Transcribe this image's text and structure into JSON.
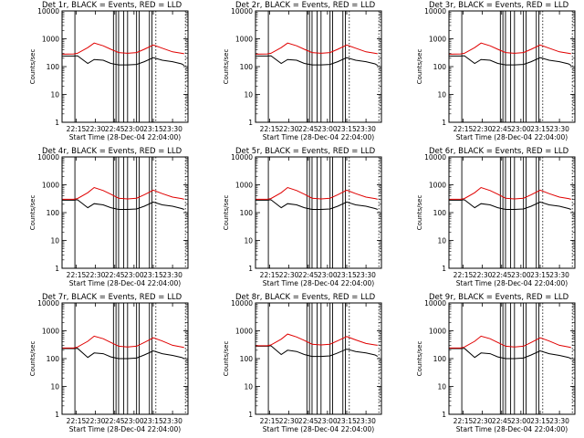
{
  "figure": {
    "background": "#ffffff",
    "x_axis_label": "Start Time (28-Dec-04 22:04:00)",
    "y_axis_label": "Counts/sec",
    "series_colors": {
      "events": "#000000",
      "lld": "#e00000"
    }
  },
  "chart_data": [
    {
      "type": "line",
      "title": "Det 1r, BLACK = Events, RED = LLD",
      "xlabel": "Start Time (28-Dec-04 22:04:00)",
      "ylabel": "Counts/sec",
      "yscale": "log",
      "xlim": [
        "22:04",
        "23:42"
      ],
      "ylim": [
        1,
        10000
      ],
      "x_ticks": [
        "22:15",
        "22:30",
        "22:45",
        "23:00",
        "23:15",
        "23:30"
      ],
      "y_ticks": [
        "1",
        "10",
        "100",
        "1000",
        "10000"
      ],
      "series": [
        {
          "name": "Events",
          "color": "#000000",
          "x": [
            "22:04",
            "22:13",
            "22:16",
            "22:24",
            "22:29",
            "22:36",
            "22:42",
            "22:48",
            "22:55",
            "23:02",
            "23:08",
            "23:15",
            "23:22",
            "23:30",
            "23:37",
            "23:39"
          ],
          "values": [
            240,
            240,
            245,
            130,
            180,
            170,
            130,
            115,
            115,
            120,
            150,
            210,
            170,
            150,
            125,
            110
          ]
        },
        {
          "name": "LLD",
          "color": "#e00000",
          "x": [
            "22:04",
            "22:13",
            "22:16",
            "22:24",
            "22:29",
            "22:36",
            "22:42",
            "22:48",
            "22:55",
            "23:02",
            "23:08",
            "23:15",
            "23:22",
            "23:30",
            "23:37",
            "23:39"
          ],
          "values": [
            280,
            285,
            300,
            480,
            700,
            560,
            420,
            320,
            300,
            320,
            420,
            600,
            460,
            340,
            300,
            290
          ]
        }
      ]
    },
    {
      "type": "line",
      "title": "Det 2r, BLACK = Events, RED = LLD",
      "xlabel": "Start Time (28-Dec-04 22:04:00)",
      "ylabel": "Counts/sec",
      "yscale": "log",
      "xlim": [
        "22:04",
        "23:42"
      ],
      "ylim": [
        1,
        10000
      ],
      "x_ticks": [
        "22:15",
        "22:30",
        "22:45",
        "23:00",
        "23:15",
        "23:30"
      ],
      "y_ticks": [
        "1",
        "10",
        "100",
        "1000",
        "10000"
      ],
      "series": [
        {
          "name": "Events",
          "color": "#000000",
          "x": [
            "22:04",
            "22:13",
            "22:16",
            "22:24",
            "22:29",
            "22:36",
            "22:42",
            "22:48",
            "22:55",
            "23:02",
            "23:08",
            "23:15",
            "23:22",
            "23:30",
            "23:37",
            "23:39"
          ],
          "values": [
            240,
            240,
            245,
            130,
            180,
            170,
            130,
            115,
            115,
            120,
            150,
            210,
            170,
            150,
            125,
            110
          ]
        },
        {
          "name": "LLD",
          "color": "#e00000",
          "x": [
            "22:04",
            "22:13",
            "22:16",
            "22:24",
            "22:29",
            "22:36",
            "22:42",
            "22:48",
            "22:55",
            "23:02",
            "23:08",
            "23:15",
            "23:22",
            "23:30",
            "23:37",
            "23:39"
          ],
          "values": [
            280,
            285,
            300,
            480,
            700,
            560,
            420,
            320,
            300,
            320,
            420,
            600,
            460,
            340,
            300,
            290
          ]
        }
      ]
    },
    {
      "type": "line",
      "title": "Det 3r, BLACK = Events, RED = LLD",
      "xlabel": "Start Time (28-Dec-04 22:04:00)",
      "ylabel": "Counts/sec",
      "yscale": "log",
      "xlim": [
        "22:04",
        "23:42"
      ],
      "ylim": [
        1,
        10000
      ],
      "x_ticks": [
        "22:15",
        "22:30",
        "22:45",
        "23:00",
        "23:15",
        "23:30"
      ],
      "y_ticks": [
        "1",
        "10",
        "100",
        "1000",
        "10000"
      ],
      "series": [
        {
          "name": "Events",
          "color": "#000000",
          "x": [
            "22:04",
            "22:13",
            "22:16",
            "22:24",
            "22:29",
            "22:36",
            "22:42",
            "22:48",
            "22:55",
            "23:02",
            "23:08",
            "23:15",
            "23:22",
            "23:30",
            "23:37",
            "23:39"
          ],
          "values": [
            240,
            240,
            245,
            130,
            180,
            170,
            130,
            115,
            115,
            120,
            150,
            210,
            170,
            150,
            125,
            110
          ]
        },
        {
          "name": "LLD",
          "color": "#e00000",
          "x": [
            "22:04",
            "22:13",
            "22:16",
            "22:24",
            "22:29",
            "22:36",
            "22:42",
            "22:48",
            "22:55",
            "23:02",
            "23:08",
            "23:15",
            "23:22",
            "23:30",
            "23:37",
            "23:39"
          ],
          "values": [
            280,
            285,
            300,
            480,
            700,
            560,
            420,
            320,
            300,
            320,
            420,
            600,
            460,
            340,
            300,
            290
          ]
        }
      ]
    },
    {
      "type": "line",
      "title": "Det 4r, BLACK = Events, RED = LLD",
      "xlabel": "Start Time (28-Dec-04 22:04:00)",
      "ylabel": "Counts/sec",
      "yscale": "log",
      "xlim": [
        "22:04",
        "23:42"
      ],
      "ylim": [
        1,
        10000
      ],
      "x_ticks": [
        "22:15",
        "22:30",
        "22:45",
        "23:00",
        "23:15",
        "23:30"
      ],
      "y_ticks": [
        "1",
        "10",
        "100",
        "1000",
        "10000"
      ],
      "series": [
        {
          "name": "Events",
          "color": "#000000",
          "x": [
            "22:04",
            "22:13",
            "22:16",
            "22:24",
            "22:29",
            "22:36",
            "22:42",
            "22:48",
            "22:55",
            "23:02",
            "23:08",
            "23:15",
            "23:22",
            "23:30",
            "23:37",
            "23:39"
          ],
          "values": [
            280,
            280,
            290,
            150,
            210,
            190,
            150,
            130,
            130,
            135,
            170,
            240,
            190,
            170,
            140,
            130
          ]
        },
        {
          "name": "LLD",
          "color": "#e00000",
          "x": [
            "22:04",
            "22:13",
            "22:16",
            "22:24",
            "22:29",
            "22:36",
            "22:42",
            "22:48",
            "22:55",
            "23:02",
            "23:08",
            "23:15",
            "23:22",
            "23:30",
            "23:37",
            "23:39"
          ],
          "values": [
            300,
            300,
            320,
            520,
            800,
            620,
            460,
            330,
            310,
            330,
            440,
            640,
            480,
            360,
            320,
            300
          ]
        }
      ]
    },
    {
      "type": "line",
      "title": "Det 5r, BLACK = Events, RED = LLD",
      "xlabel": "Start Time (28-Dec-04 22:04:00)",
      "ylabel": "Counts/sec",
      "yscale": "log",
      "xlim": [
        "22:04",
        "23:42"
      ],
      "ylim": [
        1,
        10000
      ],
      "x_ticks": [
        "22:15",
        "22:30",
        "22:45",
        "23:00",
        "23:15",
        "23:30"
      ],
      "y_ticks": [
        "1",
        "10",
        "100",
        "1000",
        "10000"
      ],
      "series": [
        {
          "name": "Events",
          "color": "#000000",
          "x": [
            "22:04",
            "22:13",
            "22:16",
            "22:24",
            "22:29",
            "22:36",
            "22:42",
            "22:48",
            "22:55",
            "23:02",
            "23:08",
            "23:15",
            "23:22",
            "23:30",
            "23:37",
            "23:39"
          ],
          "values": [
            280,
            280,
            290,
            150,
            210,
            190,
            150,
            130,
            130,
            135,
            170,
            240,
            190,
            170,
            140,
            130
          ]
        },
        {
          "name": "LLD",
          "color": "#e00000",
          "x": [
            "22:04",
            "22:13",
            "22:16",
            "22:24",
            "22:29",
            "22:36",
            "22:42",
            "22:48",
            "22:55",
            "23:02",
            "23:08",
            "23:15",
            "23:22",
            "23:30",
            "23:37",
            "23:39"
          ],
          "values": [
            300,
            300,
            320,
            520,
            800,
            620,
            460,
            330,
            310,
            330,
            440,
            640,
            480,
            360,
            320,
            300
          ]
        }
      ]
    },
    {
      "type": "line",
      "title": "Det 6r, BLACK = Events, RED = LLD",
      "xlabel": "Start Time (28-Dec-04 22:04:00)",
      "ylabel": "Counts/sec",
      "yscale": "log",
      "xlim": [
        "22:04",
        "23:42"
      ],
      "ylim": [
        1,
        10000
      ],
      "x_ticks": [
        "22:15",
        "22:30",
        "22:45",
        "23:00",
        "23:15",
        "23:30"
      ],
      "y_ticks": [
        "1",
        "10",
        "100",
        "1000",
        "10000"
      ],
      "series": [
        {
          "name": "Events",
          "color": "#000000",
          "x": [
            "22:04",
            "22:13",
            "22:16",
            "22:24",
            "22:29",
            "22:36",
            "22:42",
            "22:48",
            "22:55",
            "23:02",
            "23:08",
            "23:15",
            "23:22",
            "23:30",
            "23:37",
            "23:39"
          ],
          "values": [
            280,
            280,
            290,
            150,
            210,
            190,
            150,
            130,
            130,
            135,
            170,
            240,
            190,
            170,
            140,
            130
          ]
        },
        {
          "name": "LLD",
          "color": "#e00000",
          "x": [
            "22:04",
            "22:13",
            "22:16",
            "22:24",
            "22:29",
            "22:36",
            "22:42",
            "22:48",
            "22:55",
            "23:02",
            "23:08",
            "23:15",
            "23:22",
            "23:30",
            "23:37",
            "23:39"
          ],
          "values": [
            300,
            300,
            320,
            520,
            800,
            620,
            460,
            330,
            310,
            330,
            440,
            640,
            480,
            360,
            320,
            300
          ]
        }
      ]
    },
    {
      "type": "line",
      "title": "Det 7r, BLACK = Events, RED = LLD",
      "xlabel": "Start Time (28-Dec-04 22:04:00)",
      "ylabel": "Counts/sec",
      "yscale": "log",
      "xlim": [
        "22:04",
        "23:42"
      ],
      "ylim": [
        1,
        10000
      ],
      "x_ticks": [
        "22:15",
        "22:30",
        "22:45",
        "23:00",
        "23:15",
        "23:30"
      ],
      "y_ticks": [
        "1",
        "10",
        "100",
        "1000",
        "10000"
      ],
      "series": [
        {
          "name": "Events",
          "color": "#000000",
          "x": [
            "22:04",
            "22:13",
            "22:16",
            "22:24",
            "22:29",
            "22:36",
            "22:42",
            "22:48",
            "22:55",
            "23:02",
            "23:08",
            "23:15",
            "23:22",
            "23:30",
            "23:37",
            "23:39"
          ],
          "values": [
            230,
            230,
            235,
            110,
            160,
            150,
            115,
            100,
            100,
            105,
            135,
            190,
            150,
            130,
            110,
            100
          ]
        },
        {
          "name": "LLD",
          "color": "#e00000",
          "x": [
            "22:04",
            "22:13",
            "22:16",
            "22:24",
            "22:29",
            "22:36",
            "22:42",
            "22:48",
            "22:55",
            "23:02",
            "23:08",
            "23:15",
            "23:22",
            "23:30",
            "23:37",
            "23:39"
          ],
          "values": [
            240,
            240,
            260,
            420,
            640,
            520,
            380,
            280,
            260,
            280,
            380,
            560,
            430,
            300,
            260,
            250
          ]
        }
      ]
    },
    {
      "type": "line",
      "title": "Det 8r, BLACK = Events, RED = LLD",
      "xlabel": "Start Time (28-Dec-04 22:04:00)",
      "ylabel": "Counts/sec",
      "yscale": "log",
      "xlim": [
        "22:04",
        "23:42"
      ],
      "ylim": [
        1,
        10000
      ],
      "x_ticks": [
        "22:15",
        "22:30",
        "22:45",
        "23:00",
        "23:15",
        "23:30"
      ],
      "y_ticks": [
        "1",
        "10",
        "100",
        "1000",
        "10000"
      ],
      "series": [
        {
          "name": "Events",
          "color": "#000000",
          "x": [
            "22:04",
            "22:13",
            "22:16",
            "22:24",
            "22:29",
            "22:36",
            "22:42",
            "22:48",
            "22:55",
            "23:02",
            "23:08",
            "23:15",
            "23:22",
            "23:30",
            "23:37",
            "23:39"
          ],
          "values": [
            280,
            280,
            290,
            140,
            200,
            180,
            140,
            120,
            120,
            125,
            160,
            220,
            180,
            160,
            135,
            120
          ]
        },
        {
          "name": "LLD",
          "color": "#e00000",
          "x": [
            "22:04",
            "22:13",
            "22:16",
            "22:24",
            "22:29",
            "22:36",
            "22:42",
            "22:48",
            "22:55",
            "23:02",
            "23:08",
            "23:15",
            "23:22",
            "23:30",
            "23:37",
            "23:39"
          ],
          "values": [
            290,
            290,
            310,
            500,
            760,
            600,
            450,
            330,
            310,
            330,
            440,
            620,
            470,
            350,
            310,
            300
          ]
        }
      ]
    },
    {
      "type": "line",
      "title": "Det 9r, BLACK = Events, RED = LLD",
      "xlabel": "Start Time (28-Dec-04 22:04:00)",
      "ylabel": "Counts/sec",
      "yscale": "log",
      "xlim": [
        "22:04",
        "23:42"
      ],
      "ylim": [
        1,
        10000
      ],
      "x_ticks": [
        "22:15",
        "22:30",
        "22:45",
        "23:00",
        "23:15",
        "23:30"
      ],
      "y_ticks": [
        "1",
        "10",
        "100",
        "1000",
        "10000"
      ],
      "series": [
        {
          "name": "Events",
          "color": "#000000",
          "x": [
            "22:04",
            "22:13",
            "22:16",
            "22:24",
            "22:29",
            "22:36",
            "22:42",
            "22:48",
            "22:55",
            "23:02",
            "23:08",
            "23:15",
            "23:22",
            "23:30",
            "23:37",
            "23:39"
          ],
          "values": [
            230,
            230,
            235,
            110,
            160,
            150,
            115,
            100,
            100,
            105,
            135,
            190,
            150,
            130,
            110,
            100
          ]
        },
        {
          "name": "LLD",
          "color": "#e00000",
          "x": [
            "22:04",
            "22:13",
            "22:16",
            "22:24",
            "22:29",
            "22:36",
            "22:42",
            "22:48",
            "22:55",
            "23:02",
            "23:08",
            "23:15",
            "23:22",
            "23:30",
            "23:37",
            "23:39"
          ],
          "values": [
            240,
            240,
            260,
            420,
            640,
            520,
            380,
            280,
            260,
            280,
            380,
            560,
            430,
            300,
            260,
            250
          ]
        }
      ]
    }
  ],
  "markers": {
    "solid_times": [
      "22:14",
      "22:44",
      "22:46",
      "22:48",
      "22:52",
      "22:55",
      "23:02",
      "23:04",
      "23:12",
      "23:14"
    ],
    "dotted_times": [
      "23:17",
      "23:40"
    ],
    "color": "#000000"
  }
}
